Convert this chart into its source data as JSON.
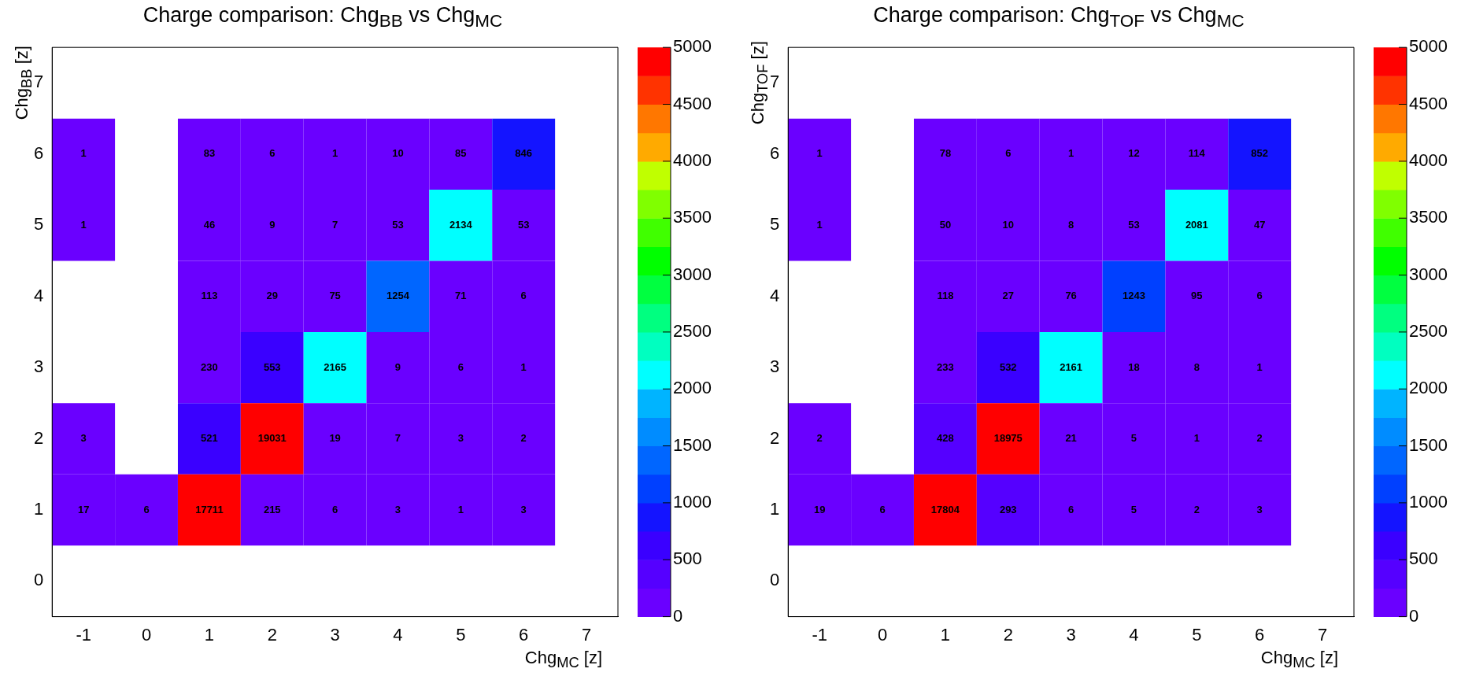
{
  "chart_data": [
    {
      "type": "heatmap",
      "title": "Charge comparison: Chg$_{BB}$ vs Chg$_{MC}$",
      "xlabel": "Chg$_{MC}$ [z]",
      "ylabel": "Chg$_{BB}$ [z]",
      "categories": [
        "-1",
        "0",
        "1",
        "2",
        "3",
        "4",
        "5",
        "6",
        "7"
      ],
      "y_categories": [
        "7",
        "6",
        "5",
        "4",
        "3",
        "2",
        "1",
        "0"
      ],
      "cells": [
        [
          null,
          null,
          null,
          null,
          null,
          null,
          null,
          null,
          null
        ],
        [
          1,
          null,
          83,
          6,
          1,
          10,
          85,
          846,
          null
        ],
        [
          1,
          null,
          46,
          9,
          7,
          53,
          2134,
          53,
          null
        ],
        [
          null,
          null,
          113,
          29,
          75,
          1254,
          71,
          6,
          null
        ],
        [
          null,
          null,
          230,
          553,
          2165,
          9,
          6,
          1,
          null
        ],
        [
          3,
          null,
          521,
          19031,
          19,
          7,
          3,
          2,
          null
        ],
        [
          17,
          6,
          17711,
          215,
          6,
          3,
          1,
          3,
          null
        ],
        [
          null,
          null,
          null,
          null,
          null,
          null,
          null,
          null,
          null
        ]
      ],
      "clim": [
        0,
        5000
      ],
      "cticks": [
        0,
        500,
        1000,
        1500,
        2000,
        2500,
        3000,
        3500,
        4000,
        4500,
        5000
      ],
      "data_labels": true
    },
    {
      "type": "heatmap",
      "title": "Charge comparison: Chg$_{TOF}$ vs Chg$_{MC}$",
      "xlabel": "Chg$_{MC}$ [z]",
      "ylabel": "Chg$_{TOF}$ [z]",
      "categories": [
        "-1",
        "0",
        "1",
        "2",
        "3",
        "4",
        "5",
        "6",
        "7"
      ],
      "y_categories": [
        "7",
        "6",
        "5",
        "4",
        "3",
        "2",
        "1",
        "0"
      ],
      "cells": [
        [
          null,
          null,
          null,
          null,
          null,
          null,
          null,
          null,
          null
        ],
        [
          1,
          null,
          78,
          6,
          1,
          12,
          114,
          852,
          null
        ],
        [
          1,
          null,
          50,
          10,
          8,
          53,
          2081,
          47,
          null
        ],
        [
          null,
          null,
          118,
          27,
          76,
          1243,
          95,
          6,
          null
        ],
        [
          null,
          null,
          233,
          532,
          2161,
          18,
          8,
          1,
          null
        ],
        [
          2,
          null,
          428,
          18975,
          21,
          5,
          1,
          2,
          null
        ],
        [
          19,
          6,
          17804,
          293,
          6,
          5,
          2,
          3,
          null
        ],
        [
          null,
          null,
          null,
          null,
          null,
          null,
          null,
          null,
          null
        ]
      ],
      "clim": [
        0,
        5000
      ],
      "cticks": [
        0,
        500,
        1000,
        1500,
        2000,
        2500,
        3000,
        3500,
        4000,
        4500,
        5000
      ],
      "data_labels": true
    }
  ]
}
